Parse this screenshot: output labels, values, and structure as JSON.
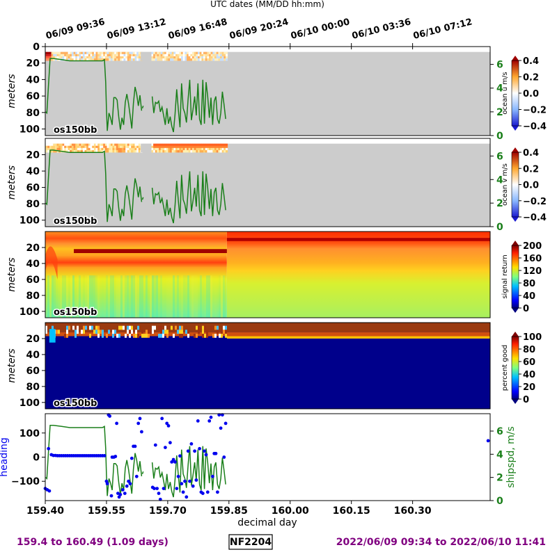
{
  "top_axis": {
    "title": "UTC dates (MM/DD hh:mm)",
    "ticks": [
      {
        "day": 159.4,
        "label": "06/09 09:36"
      },
      {
        "day": 159.55,
        "label": "06/09 13:12"
      },
      {
        "day": 159.7,
        "label": "06/09 16:48"
      },
      {
        "day": 159.85,
        "label": "06/09 20:24"
      },
      {
        "day": 160.0,
        "label": "06/10 00:00"
      },
      {
        "day": 160.15,
        "label": "06/10 03:36"
      },
      {
        "day": 160.3,
        "label": "06/10 07:12"
      }
    ]
  },
  "footer": {
    "range_text": "159.4 to 160.49 (1.09 days)",
    "cruise": "NF2204",
    "date_range": "2022/06/09 09:34 to 2022/06/10 11:41"
  },
  "colors": {
    "no_data": "#cccccc",
    "ship_speed": "#1a7f1a",
    "heading": "#0000ee",
    "footer_text": "#800080"
  },
  "chart_data": [
    {
      "type": "heatmap",
      "id": "ocean-u",
      "ylabel": "meters",
      "instrument": "os150bb",
      "colorbar_label": "ocean u m/s",
      "colorbar_range": [
        -0.4,
        0.4
      ],
      "colorbar_ticks": [
        "0.4",
        "0.2",
        "0.0",
        "−0.2",
        "−0.4"
      ],
      "yticks": [
        0,
        20,
        40,
        60,
        80,
        100
      ],
      "ylim": [
        0,
        108
      ],
      "right_axis_ticks": [
        0,
        2,
        4,
        6
      ],
      "right_axis_lim": [
        0,
        7.5
      ]
    },
    {
      "type": "heatmap",
      "id": "ocean-v",
      "ylabel": "meters",
      "instrument": "os150bb",
      "colorbar_label": "ocean v m/s",
      "colorbar_range": [
        -0.4,
        0.4
      ],
      "colorbar_ticks": [
        "0.4",
        "0.2",
        "0.0",
        "−0.2",
        "−0.4"
      ],
      "yticks": [
        20,
        40,
        60,
        80,
        100
      ],
      "ylim": [
        0,
        108
      ],
      "right_axis_ticks": [
        0,
        2,
        4,
        6
      ],
      "right_axis_lim": [
        0,
        7.5
      ]
    },
    {
      "type": "heatmap",
      "id": "signal-return",
      "ylabel": "meters",
      "instrument": "os150bb",
      "colorbar_label": "signal return",
      "colorbar_range": [
        0,
        200
      ],
      "colorbar_ticks": [
        "200",
        "160",
        "120",
        "80",
        "40",
        "0"
      ],
      "yticks": [
        20,
        40,
        60,
        80,
        100
      ],
      "ylim": [
        0,
        108
      ]
    },
    {
      "type": "heatmap",
      "id": "percent-good",
      "ylabel": "meters",
      "instrument": "os150bb",
      "colorbar_label": "percent good",
      "colorbar_range": [
        0,
        100
      ],
      "colorbar_ticks": [
        "100",
        "80",
        "60",
        "40",
        "20",
        "0"
      ],
      "yticks": [
        20,
        40,
        60,
        80,
        100
      ],
      "ylim": [
        0,
        108
      ]
    },
    {
      "type": "scatter",
      "id": "heading-shipspd",
      "ylabel": "heading",
      "right_label": "shipspd, m/s",
      "xlabel": "decimal day",
      "xticks": [
        "159.40",
        "159.55",
        "159.70",
        "159.85",
        "160.00",
        "160.15",
        "160.30"
      ],
      "xlim": [
        159.4,
        160.49
      ],
      "yticks": [
        "100",
        "0",
        "−100"
      ],
      "ylim": [
        -180,
        180
      ],
      "right_axis_ticks": [
        0,
        2,
        4,
        6
      ],
      "right_axis_lim": [
        0,
        7.5
      ],
      "speed_series": [
        [
          159.401,
          2.0
        ],
        [
          159.404,
          1.9
        ],
        [
          159.408,
          4.3
        ],
        [
          159.412,
          6.5
        ],
        [
          159.42,
          6.5
        ],
        [
          159.44,
          6.4
        ],
        [
          159.46,
          6.3
        ],
        [
          159.48,
          6.3
        ],
        [
          159.5,
          6.3
        ],
        [
          159.52,
          6.3
        ],
        [
          159.54,
          6.3
        ],
        [
          159.545,
          6.4
        ],
        [
          159.548,
          4.5
        ],
        [
          159.55,
          2.2
        ],
        [
          159.552,
          0.4
        ],
        [
          159.556,
          1.9
        ],
        [
          159.56,
          1.5
        ],
        [
          159.564,
          0.9
        ],
        [
          159.568,
          3.2
        ],
        [
          159.572,
          3.2
        ],
        [
          159.576,
          3.0
        ],
        [
          159.58,
          1.6
        ],
        [
          159.584,
          0.5
        ],
        [
          159.588,
          1.5
        ],
        [
          159.592,
          0.9
        ],
        [
          159.596,
          2.8
        ],
        [
          159.6,
          3.5
        ],
        [
          159.604,
          2.7
        ],
        [
          159.608,
          1.7
        ],
        [
          159.612,
          0.6
        ],
        [
          159.616,
          2.7
        ],
        [
          159.62,
          4.1
        ],
        [
          159.624,
          3.5
        ],
        [
          159.628,
          2.5
        ],
        [
          159.632,
          3.4
        ],
        [
          159.636,
          2.1
        ],
        null,
        [
          159.638,
          2.3
        ],
        [
          159.64,
          2.5
        ],
        null,
        [
          159.662,
          3.3
        ],
        [
          159.666,
          1.9
        ],
        [
          159.67,
          2.8
        ],
        [
          159.674,
          2.7
        ],
        [
          159.678,
          2.9
        ],
        [
          159.682,
          2.0
        ],
        [
          159.686,
          2.4
        ],
        [
          159.69,
          1.7
        ],
        [
          159.694,
          0.9
        ],
        [
          159.698,
          2.3
        ],
        [
          159.702,
          1.0
        ],
        [
          159.706,
          1.6
        ],
        [
          159.71,
          0.8
        ],
        [
          159.714,
          0.3
        ],
        [
          159.718,
          1.8
        ],
        [
          159.722,
          3.9
        ],
        [
          159.726,
          2.2
        ],
        [
          159.73,
          0.7
        ],
        [
          159.734,
          4.4
        ],
        [
          159.738,
          2.3
        ],
        [
          159.742,
          1.9
        ],
        [
          159.746,
          1.1
        ],
        [
          159.75,
          3.1
        ],
        [
          159.754,
          4.7
        ],
        [
          159.758,
          1.3
        ],
        [
          159.762,
          2.2
        ],
        [
          159.766,
          3.3
        ],
        [
          159.77,
          1.7
        ],
        [
          159.774,
          4.4
        ],
        [
          159.778,
          1.4
        ],
        [
          159.782,
          0.9
        ],
        [
          159.786,
          4.7
        ],
        [
          159.79,
          1.0
        ],
        [
          159.794,
          4.5
        ],
        [
          159.798,
          3.3
        ],
        [
          159.802,
          1.5
        ],
        [
          159.806,
          3.2
        ],
        [
          159.81,
          0.9
        ],
        [
          159.814,
          2.9
        ],
        [
          159.818,
          3.3
        ],
        [
          159.822,
          1.4
        ],
        [
          159.826,
          1.0
        ],
        [
          159.83,
          1.9
        ],
        [
          159.834,
          3.7
        ],
        [
          159.838,
          2.6
        ],
        [
          159.842,
          1.4
        ]
      ],
      "heading_points": [
        [
          159.4,
          -130
        ],
        [
          159.405,
          -135
        ],
        [
          159.41,
          -140
        ],
        [
          159.408,
          35
        ],
        [
          159.415,
          10
        ],
        [
          159.42,
          7
        ],
        [
          159.425,
          7
        ],
        [
          159.43,
          6
        ],
        [
          159.435,
          6
        ],
        [
          159.44,
          6
        ],
        [
          159.445,
          6
        ],
        [
          159.45,
          6
        ],
        [
          159.455,
          6
        ],
        [
          159.46,
          6
        ],
        [
          159.465,
          6
        ],
        [
          159.47,
          6
        ],
        [
          159.475,
          6
        ],
        [
          159.48,
          6
        ],
        [
          159.485,
          6
        ],
        [
          159.49,
          6
        ],
        [
          159.495,
          6
        ],
        [
          159.5,
          6
        ],
        [
          159.505,
          6
        ],
        [
          159.51,
          6
        ],
        [
          159.515,
          6
        ],
        [
          159.52,
          6
        ],
        [
          159.525,
          6
        ],
        [
          159.53,
          6
        ],
        [
          159.535,
          6
        ],
        [
          159.54,
          6
        ],
        [
          159.545,
          6
        ],
        [
          159.55,
          -100
        ],
        [
          159.552,
          -110
        ],
        [
          159.555,
          175
        ],
        [
          159.558,
          170
        ],
        [
          159.562,
          -160
        ],
        [
          159.564,
          0
        ],
        [
          159.568,
          0
        ],
        [
          159.572,
          3
        ],
        [
          159.575,
          140
        ],
        [
          159.578,
          -150
        ],
        [
          159.581,
          -165
        ],
        [
          159.584,
          -155
        ],
        [
          159.59,
          -135
        ],
        [
          159.595,
          -150
        ],
        [
          159.6,
          -120
        ],
        [
          159.604,
          -100
        ],
        [
          159.608,
          -110
        ],
        [
          159.612,
          -5
        ],
        [
          159.616,
          45
        ],
        [
          159.62,
          45
        ],
        [
          159.624,
          -80
        ],
        [
          159.628,
          140
        ],
        [
          159.632,
          160
        ],
        [
          159.636,
          105
        ],
        [
          159.663,
          -125
        ],
        [
          159.667,
          -130
        ],
        [
          159.67,
          50
        ],
        [
          159.674,
          -130
        ],
        [
          159.678,
          -150
        ],
        [
          159.682,
          -175
        ],
        [
          159.686,
          160
        ],
        [
          159.69,
          -130
        ],
        [
          159.694,
          40
        ],
        [
          159.698,
          140
        ],
        [
          159.702,
          130
        ],
        [
          159.706,
          60
        ],
        [
          159.71,
          -20
        ],
        [
          159.714,
          -10
        ],
        [
          159.718,
          -20
        ],
        [
          159.722,
          -130
        ],
        [
          159.726,
          -80
        ],
        [
          159.73,
          5
        ],
        [
          159.734,
          -110
        ],
        [
          159.738,
          -145
        ],
        [
          159.742,
          -100
        ],
        [
          159.746,
          -165
        ],
        [
          159.75,
          25
        ],
        [
          159.754,
          -100
        ],
        [
          159.758,
          55
        ],
        [
          159.762,
          -120
        ],
        [
          159.766,
          25
        ],
        [
          159.77,
          -95
        ],
        [
          159.774,
          150
        ],
        [
          159.778,
          35
        ],
        [
          159.782,
          -145
        ],
        [
          159.786,
          -150
        ],
        [
          159.79,
          25
        ],
        [
          159.794,
          10
        ],
        [
          159.798,
          -145
        ],
        [
          159.802,
          150
        ],
        [
          159.806,
          165
        ],
        [
          159.81,
          -80
        ],
        [
          159.814,
          15
        ],
        [
          159.818,
          15
        ],
        [
          159.822,
          -145
        ],
        [
          159.826,
          175
        ],
        [
          159.83,
          120
        ],
        [
          159.834,
          175
        ],
        [
          159.838,
          0
        ],
        [
          159.842,
          140
        ],
        [
          160.485,
          68
        ]
      ]
    }
  ]
}
